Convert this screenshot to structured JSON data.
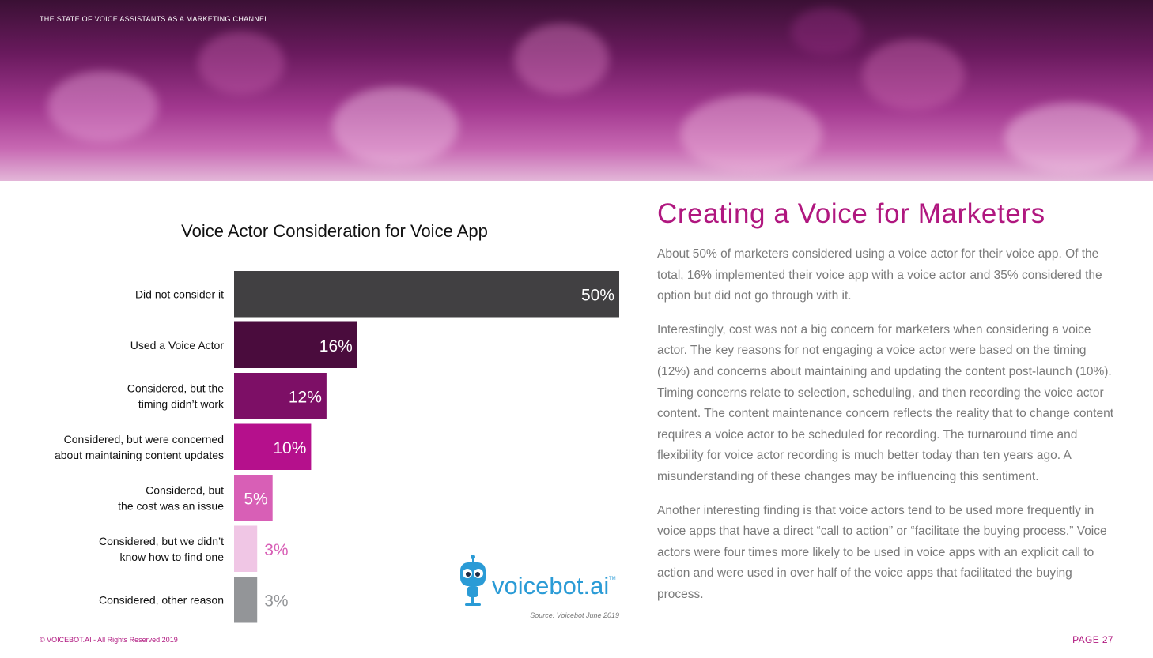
{
  "header": {
    "title": "THE STATE OF VOICE ASSISTANTS AS A MARKETING CHANNEL"
  },
  "chart_data": {
    "type": "bar",
    "orientation": "horizontal",
    "title": "Voice Actor Consideration for Voice App",
    "categories": [
      [
        "Did not consider it"
      ],
      [
        "Used a Voice Actor"
      ],
      [
        "Considered, but the",
        "timing didn’t work"
      ],
      [
        "Considered, but were concerned",
        "about maintaining content updates"
      ],
      [
        "Considered, but",
        "the cost was an issue"
      ],
      [
        "Considered, but we didn’t",
        "know how to find one"
      ],
      [
        "Considered, other reason"
      ]
    ],
    "values": [
      50,
      16,
      12,
      10,
      5,
      3,
      3
    ],
    "value_labels": [
      "50%",
      "16%",
      "12%",
      "10%",
      "5%",
      "3%",
      "3%"
    ],
    "colors": [
      "#414042",
      "#4a0c3d",
      "#7d0f66",
      "#b5108c",
      "#d85fb6",
      "#f0c6e5",
      "#939598"
    ],
    "label_colors": [
      "#ffffff",
      "#ffffff",
      "#ffffff",
      "#ffffff",
      "#ffffff",
      "#d85fb6",
      "#939598"
    ],
    "label_inside": [
      true,
      true,
      true,
      true,
      true,
      false,
      false
    ],
    "xlim": [
      0,
      50
    ],
    "xlabel": "",
    "ylabel": "",
    "grid": false,
    "legend": "none"
  },
  "logo": {
    "text": "voicebot.ai",
    "tm": "TM"
  },
  "source": "Source: Voicebot June 2019",
  "article": {
    "heading": "Creating a Voice for Marketers",
    "paragraphs": [
      "About 50% of marketers considered using a voice actor for their voice app. Of the total, 16% implemented their voice app with a voice actor and 35% considered the option but did not go through with it.",
      "Interestingly, cost was not a big concern for marketers when considering a voice actor. The key reasons for not engaging a voice actor were based on the timing (12%) and concerns about maintaining and updating the content post-launch (10%). Timing concerns relate to selection, scheduling, and then recording the voice actor content. The content maintenance concern reflects the reality that to change content requires a voice actor to be scheduled for recording. The turnaround time and flexibility for voice actor recording is much better today than ten years ago. A misunderstanding of these changes may be influencing this sentiment.",
      "Another interesting finding is that voice actors tend to be used more frequently in voice apps that have a direct “call to action” or “facilitate the buying process.” Voice actors were four times more likely to be used in voice apps with an explicit call to action and were used in over half of the voice apps that facilitated the buying process."
    ]
  },
  "footer": {
    "copyright": "© VOICEBOT.AI - All Rights Reserved 2019",
    "page": "PAGE 27"
  }
}
